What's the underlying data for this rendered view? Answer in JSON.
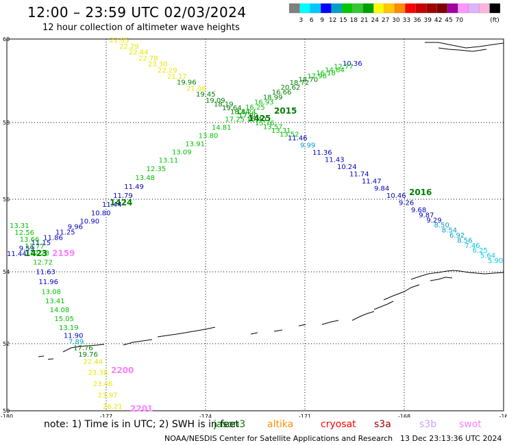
{
  "header": {
    "title": "12:00 – 23:59 UTC 02/03/2024",
    "subtitle": "12 hour collection of altimeter wave heights"
  },
  "colorbar": {
    "unit": "(ft)",
    "colors": [
      "#808080",
      "#00ffff",
      "#00c8ff",
      "#0000ff",
      "#00a0c8",
      "#00c800",
      "#32c832",
      "#00a000",
      "#ffff00",
      "#ffc800",
      "#ff8c00",
      "#ff0000",
      "#c80000",
      "#a00000",
      "#800000",
      "#a000a0",
      "#ff96ff",
      "#dcb4ff",
      "#ffb4dc",
      "#000000"
    ],
    "labels": [
      "3",
      "6",
      "9",
      "12",
      "15",
      "18",
      "21",
      "24",
      "27",
      "30",
      "33",
      "36",
      "39",
      "42",
      "45",
      "70"
    ]
  },
  "map": {
    "lat_ticks": [
      "60",
      "58",
      "56",
      "54",
      "52",
      "50"
    ],
    "lon_ticks": [
      "-180",
      "-177",
      "-174",
      "-171",
      "-168",
      "-16"
    ],
    "pass_labels": [
      {
        "text": "2015",
        "color": "#008000"
      },
      {
        "text": "1425",
        "color": "#008000"
      },
      {
        "text": "2016",
        "color": "#008000"
      },
      {
        "text": "1424",
        "color": "#008000"
      },
      {
        "text": "1423",
        "color": "#008000"
      },
      {
        "text": "2159",
        "color": "#ff80ff"
      },
      {
        "text": "2200",
        "color": "#ff80ff"
      },
      {
        "text": "2201",
        "color": "#ff80ff"
      }
    ],
    "track_a": [
      {
        "v": "22.05",
        "c": "#e6e600"
      },
      {
        "v": "22.29",
        "c": "#e6e600"
      },
      {
        "v": "22.44",
        "c": "#e6e600"
      },
      {
        "v": "22.78",
        "c": "#e6e600"
      },
      {
        "v": "23.30",
        "c": "#e6e600"
      },
      {
        "v": "22.29",
        "c": "#e6e600"
      },
      {
        "v": "21.17",
        "c": "#e6e600"
      },
      {
        "v": "19.96",
        "c": "#008000"
      },
      {
        "v": "21.06",
        "c": "#e6e600"
      },
      {
        "v": "19.45",
        "c": "#008000"
      },
      {
        "v": "19.09",
        "c": "#008000"
      },
      {
        "v": "18.19",
        "c": "#008000"
      },
      {
        "v": "19.64",
        "c": "#008000"
      },
      {
        "v": "18.84",
        "c": "#008000"
      },
      {
        "v": "17.80",
        "c": "#008000"
      },
      {
        "v": "16.40",
        "c": "#008000"
      },
      {
        "v": "15.76",
        "c": "#00c000"
      },
      {
        "v": "13.57",
        "c": "#00c000"
      },
      {
        "v": "13.31",
        "c": "#00c000"
      },
      {
        "v": "13.52",
        "c": "#00c000"
      },
      {
        "v": "11.46",
        "c": "#0000c0"
      },
      {
        "v": "9.99",
        "c": "#00a0c8"
      },
      {
        "v": "11.36",
        "c": "#0000c0"
      },
      {
        "v": "11.43",
        "c": "#0000c0"
      },
      {
        "v": "10.24",
        "c": "#0000c0"
      },
      {
        "v": "11.74",
        "c": "#0000c0"
      },
      {
        "v": "11.47",
        "c": "#0000c0"
      },
      {
        "v": "9.84",
        "c": "#0000c0"
      },
      {
        "v": "10.46",
        "c": "#0000c0"
      },
      {
        "v": "9.26",
        "c": "#0000c0"
      },
      {
        "v": "9.68",
        "c": "#0000c0"
      },
      {
        "v": "9.87",
        "c": "#0000c0"
      },
      {
        "v": "9.29",
        "c": "#0000c0"
      },
      {
        "v": "8.50",
        "c": "#00a0c8"
      },
      {
        "v": "8.54",
        "c": "#00a0c8"
      },
      {
        "v": "6.92",
        "c": "#00a0c8"
      },
      {
        "v": "8.56",
        "c": "#00a0c8"
      },
      {
        "v": "7.46",
        "c": "#00c8e6"
      },
      {
        "v": "6.25",
        "c": "#00c8e6"
      },
      {
        "v": "5.64",
        "c": "#00c8e6"
      },
      {
        "v": "5.90",
        "c": "#00c8e6"
      }
    ],
    "track_b": [
      {
        "v": "10.36",
        "c": "#0000c0"
      },
      {
        "v": "12.77",
        "c": "#00c000"
      },
      {
        "v": "14.64",
        "c": "#00c000"
      },
      {
        "v": "16.18",
        "c": "#00c000"
      },
      {
        "v": "17.96",
        "c": "#00c000"
      },
      {
        "v": "18.70",
        "c": "#008000"
      },
      {
        "v": "18.72",
        "c": "#008000"
      },
      {
        "v": "20.62",
        "c": "#008000"
      },
      {
        "v": "16.66",
        "c": "#008000"
      },
      {
        "v": "18.99",
        "c": "#008000"
      },
      {
        "v": "16.93",
        "c": "#00c000"
      },
      {
        "v": "16.25",
        "c": "#00c000"
      },
      {
        "v": "14.24",
        "c": "#00c000"
      },
      {
        "v": "17.25",
        "c": "#00c000"
      },
      {
        "v": "14.81",
        "c": "#00c000"
      },
      {
        "v": "13.80",
        "c": "#00c000"
      },
      {
        "v": "13.91",
        "c": "#00c000"
      },
      {
        "v": "13.09",
        "c": "#00c000"
      },
      {
        "v": "13.11",
        "c": "#00c000"
      },
      {
        "v": "12.35",
        "c": "#00c000"
      },
      {
        "v": "13.48",
        "c": "#00c000"
      },
      {
        "v": "11.49",
        "c": "#0000c0"
      },
      {
        "v": "11.79",
        "c": "#0000c0"
      },
      {
        "v": "11.44",
        "c": "#0000c0"
      },
      {
        "v": "10.80",
        "c": "#0000c0"
      },
      {
        "v": "10.90",
        "c": "#0000c0"
      },
      {
        "v": "9.96",
        "c": "#0000c0"
      },
      {
        "v": "11.25",
        "c": "#0000c0"
      },
      {
        "v": "11.86",
        "c": "#0000c0"
      },
      {
        "v": "11.15",
        "c": "#0000c0"
      },
      {
        "v": "9.59",
        "c": "#0000c0"
      },
      {
        "v": "11.44",
        "c": "#0000c0"
      }
    ],
    "track_c": [
      {
        "v": "13.31",
        "c": "#00c000"
      },
      {
        "v": "12.56",
        "c": "#00c000"
      },
      {
        "v": "13.66",
        "c": "#00c000"
      },
      {
        "v": "13.77",
        "c": "#00c000"
      },
      {
        "v": "12.23",
        "c": "#00c000"
      },
      {
        "v": "12.72",
        "c": "#00c000"
      },
      {
        "v": "11.63",
        "c": "#0000c0"
      },
      {
        "v": "11.96",
        "c": "#0000c0"
      },
      {
        "v": "13.08",
        "c": "#00c000"
      },
      {
        "v": "13.41",
        "c": "#00c000"
      },
      {
        "v": "14.08",
        "c": "#00c000"
      },
      {
        "v": "15.05",
        "c": "#00c000"
      },
      {
        "v": "13.19",
        "c": "#00c000"
      },
      {
        "v": "11.90",
        "c": "#0000c0"
      },
      {
        "v": "7.89",
        "c": "#00a0c8"
      },
      {
        "v": "17.76",
        "c": "#008000"
      },
      {
        "v": "19.76",
        "c": "#008000"
      },
      {
        "v": "22.44",
        "c": "#e6e600"
      },
      {
        "v": "23.38",
        "c": "#e6e600"
      },
      {
        "v": "23.46",
        "c": "#e6e600"
      },
      {
        "v": "23.97",
        "c": "#e6e600"
      },
      {
        "v": "26.21",
        "c": "#e6e600"
      }
    ]
  },
  "footer": {
    "note": "note:  1) Time is in UTC; 2) SWH is in feet",
    "satellites": [
      {
        "name": "jason3",
        "color": "#008000"
      },
      {
        "name": "altika",
        "color": "#ff8c00"
      },
      {
        "name": "cryosat",
        "color": "#ff0000"
      },
      {
        "name": "s3a",
        "color": "#a00000"
      },
      {
        "name": "s3b",
        "color": "#c8a0ff"
      },
      {
        "name": "swot",
        "color": "#ff80ff"
      }
    ],
    "credit": "NOAA/NESDIS Center for Satellite Applications and Research",
    "date": "13 Dec 23:13:36 UTC 2024"
  }
}
